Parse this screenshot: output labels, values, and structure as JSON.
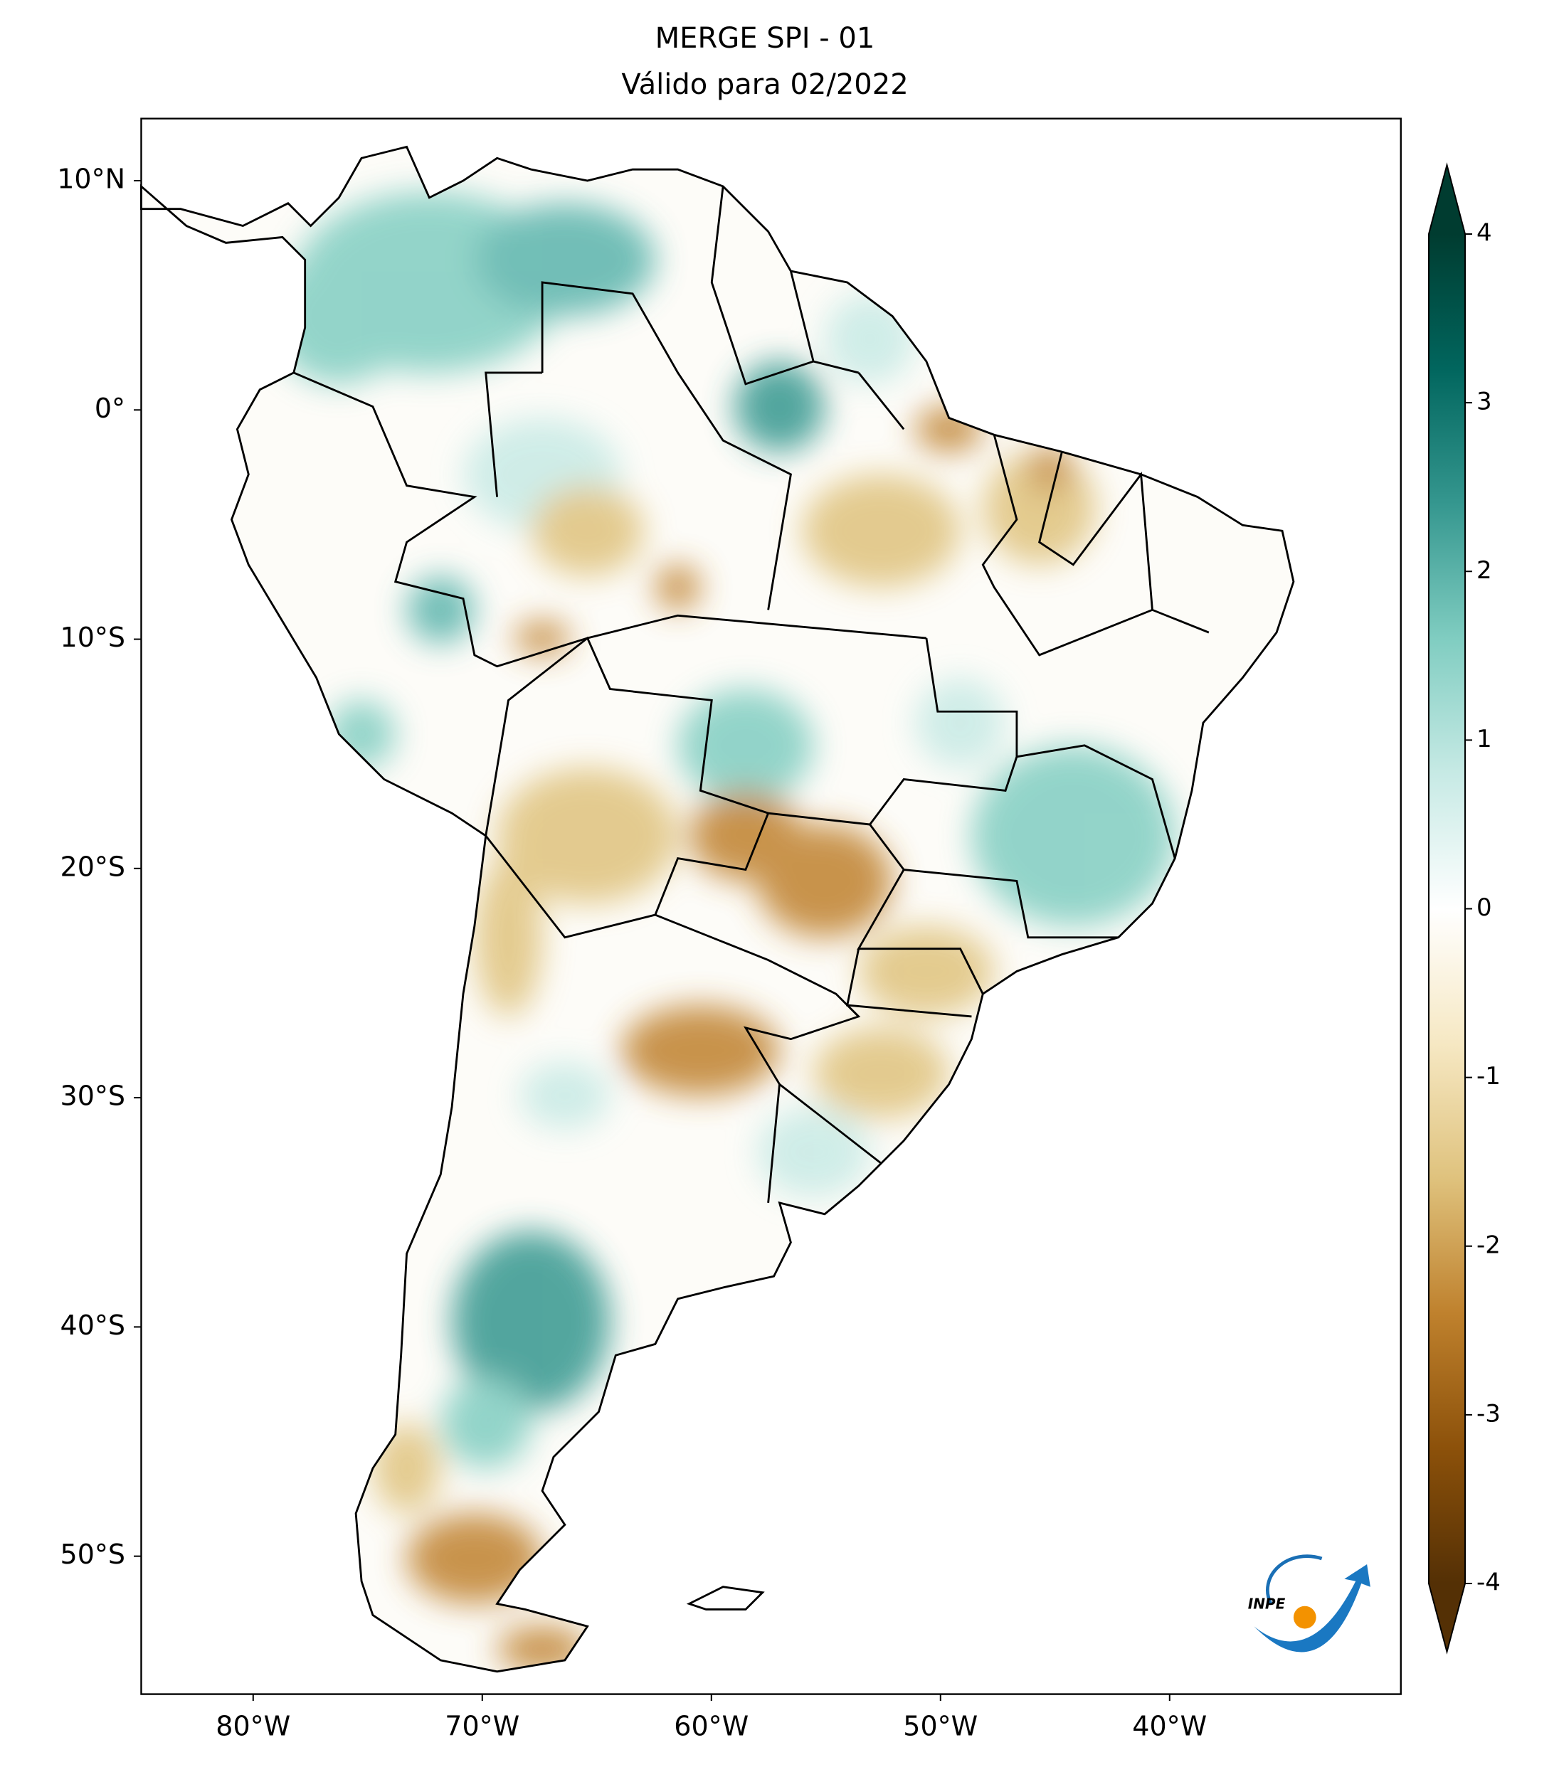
{
  "map": {
    "title": "MERGE   SPI - 01",
    "subtitle": "Válido para 02/2022",
    "xlim": [
      -84.9,
      -29.9
    ],
    "ylim": [
      -56,
      12.7
    ],
    "xticks": [
      {
        "value": -80,
        "label": "80°W"
      },
      {
        "value": -70,
        "label": "70°W"
      },
      {
        "value": -60,
        "label": "60°W"
      },
      {
        "value": -50,
        "label": "50°W"
      },
      {
        "value": -40,
        "label": "40°W"
      }
    ],
    "yticks": [
      {
        "value": 10,
        "label": "10°N"
      },
      {
        "value": 0,
        "label": "0°"
      },
      {
        "value": -10,
        "label": "10°S"
      },
      {
        "value": -20,
        "label": "20°S"
      },
      {
        "value": -30,
        "label": "30°S"
      },
      {
        "value": -40,
        "label": "40°S"
      },
      {
        "value": -50,
        "label": "50°S"
      }
    ],
    "colorbar": {
      "clim": [
        -4,
        4
      ],
      "ticks": [
        4,
        3,
        2,
        1,
        0,
        -1,
        -2,
        -3,
        -4
      ],
      "colors": [
        "#543005",
        "#8c510a",
        "#bf812d",
        "#dfc27d",
        "#f6e8c3",
        "#ffffff",
        "#c7eae5",
        "#80cdc1",
        "#35978f",
        "#01665e",
        "#003c30"
      ]
    },
    "logo": "INPE"
  }
}
